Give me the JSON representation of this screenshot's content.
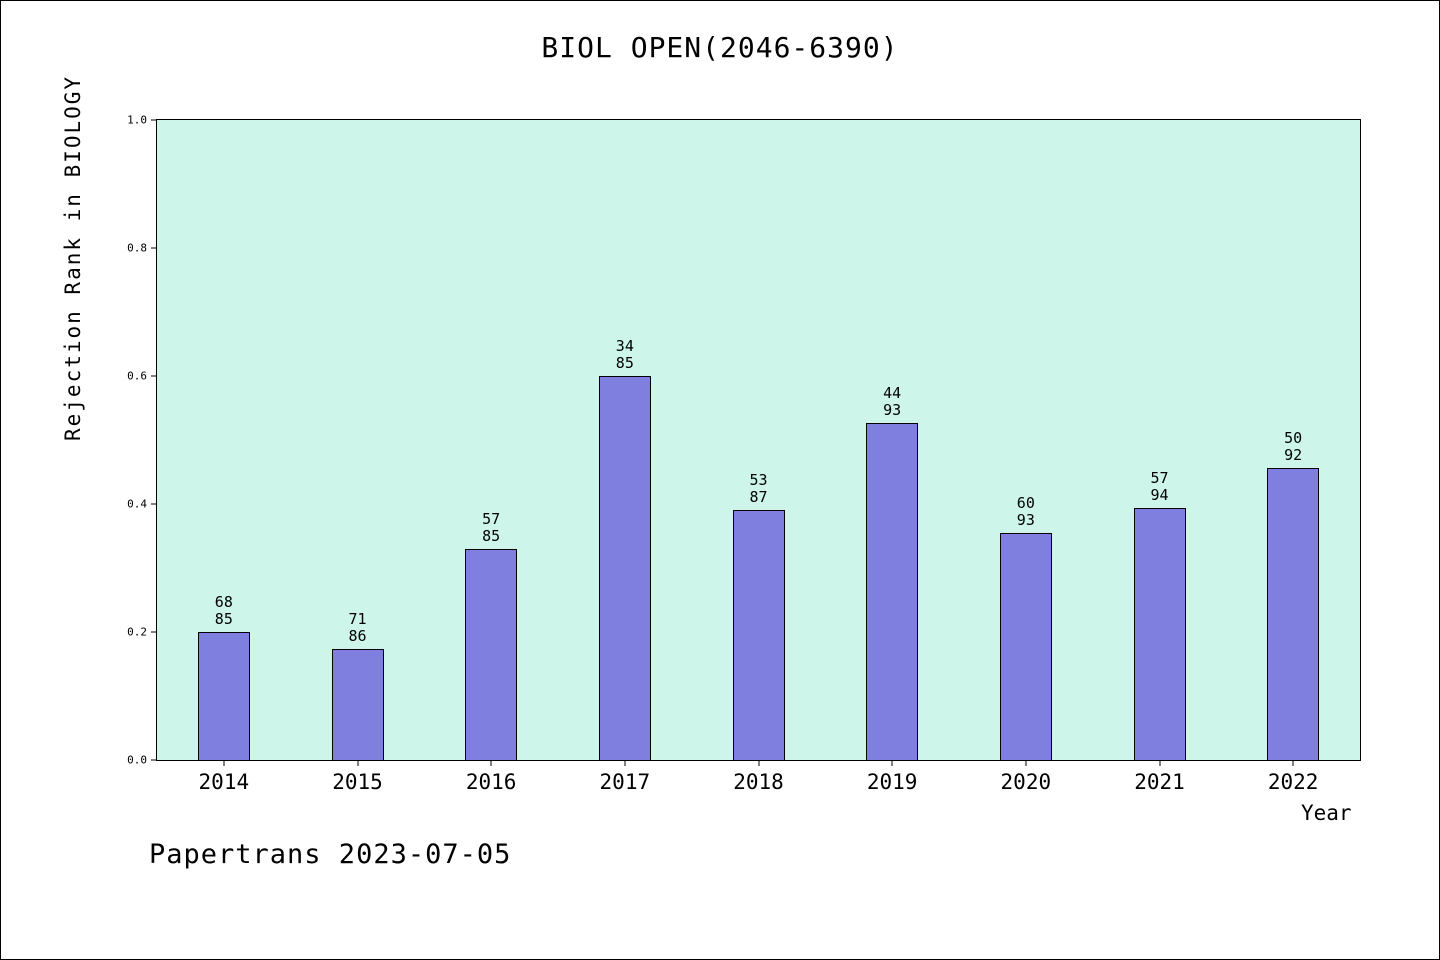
{
  "title": "BIOL OPEN(2046-6390)",
  "footer": "Papertrans 2023-07-05",
  "chart_data": {
    "type": "bar",
    "title": "BIOL OPEN(2046-6390)",
    "xlabel": "Year",
    "ylabel": "Rejection Rank in BIOLOGY",
    "ylim": [
      0.0,
      1.0
    ],
    "yticks": [
      "0.0",
      "0.2",
      "0.4",
      "0.6",
      "0.8",
      "1.0"
    ],
    "grid": false,
    "legend": "none",
    "categories": [
      "2014",
      "2015",
      "2016",
      "2017",
      "2018",
      "2019",
      "2020",
      "2021",
      "2022"
    ],
    "values": [
      0.2,
      0.174,
      0.329,
      0.6,
      0.391,
      0.527,
      0.355,
      0.394,
      0.457
    ],
    "bar_labels": [
      {
        "top": "68",
        "bottom": "85"
      },
      {
        "top": "71",
        "bottom": "86"
      },
      {
        "top": "57",
        "bottom": "85"
      },
      {
        "top": "34",
        "bottom": "85"
      },
      {
        "top": "53",
        "bottom": "87"
      },
      {
        "top": "44",
        "bottom": "93"
      },
      {
        "top": "60",
        "bottom": "93"
      },
      {
        "top": "57",
        "bottom": "94"
      },
      {
        "top": "50",
        "bottom": "92"
      }
    ],
    "colors": {
      "bar_fill": "#7f7fe0",
      "bar_border": "#000000",
      "plot_background": "#cdf5e9",
      "page_background": "#ffffff",
      "text": "#000000"
    }
  }
}
